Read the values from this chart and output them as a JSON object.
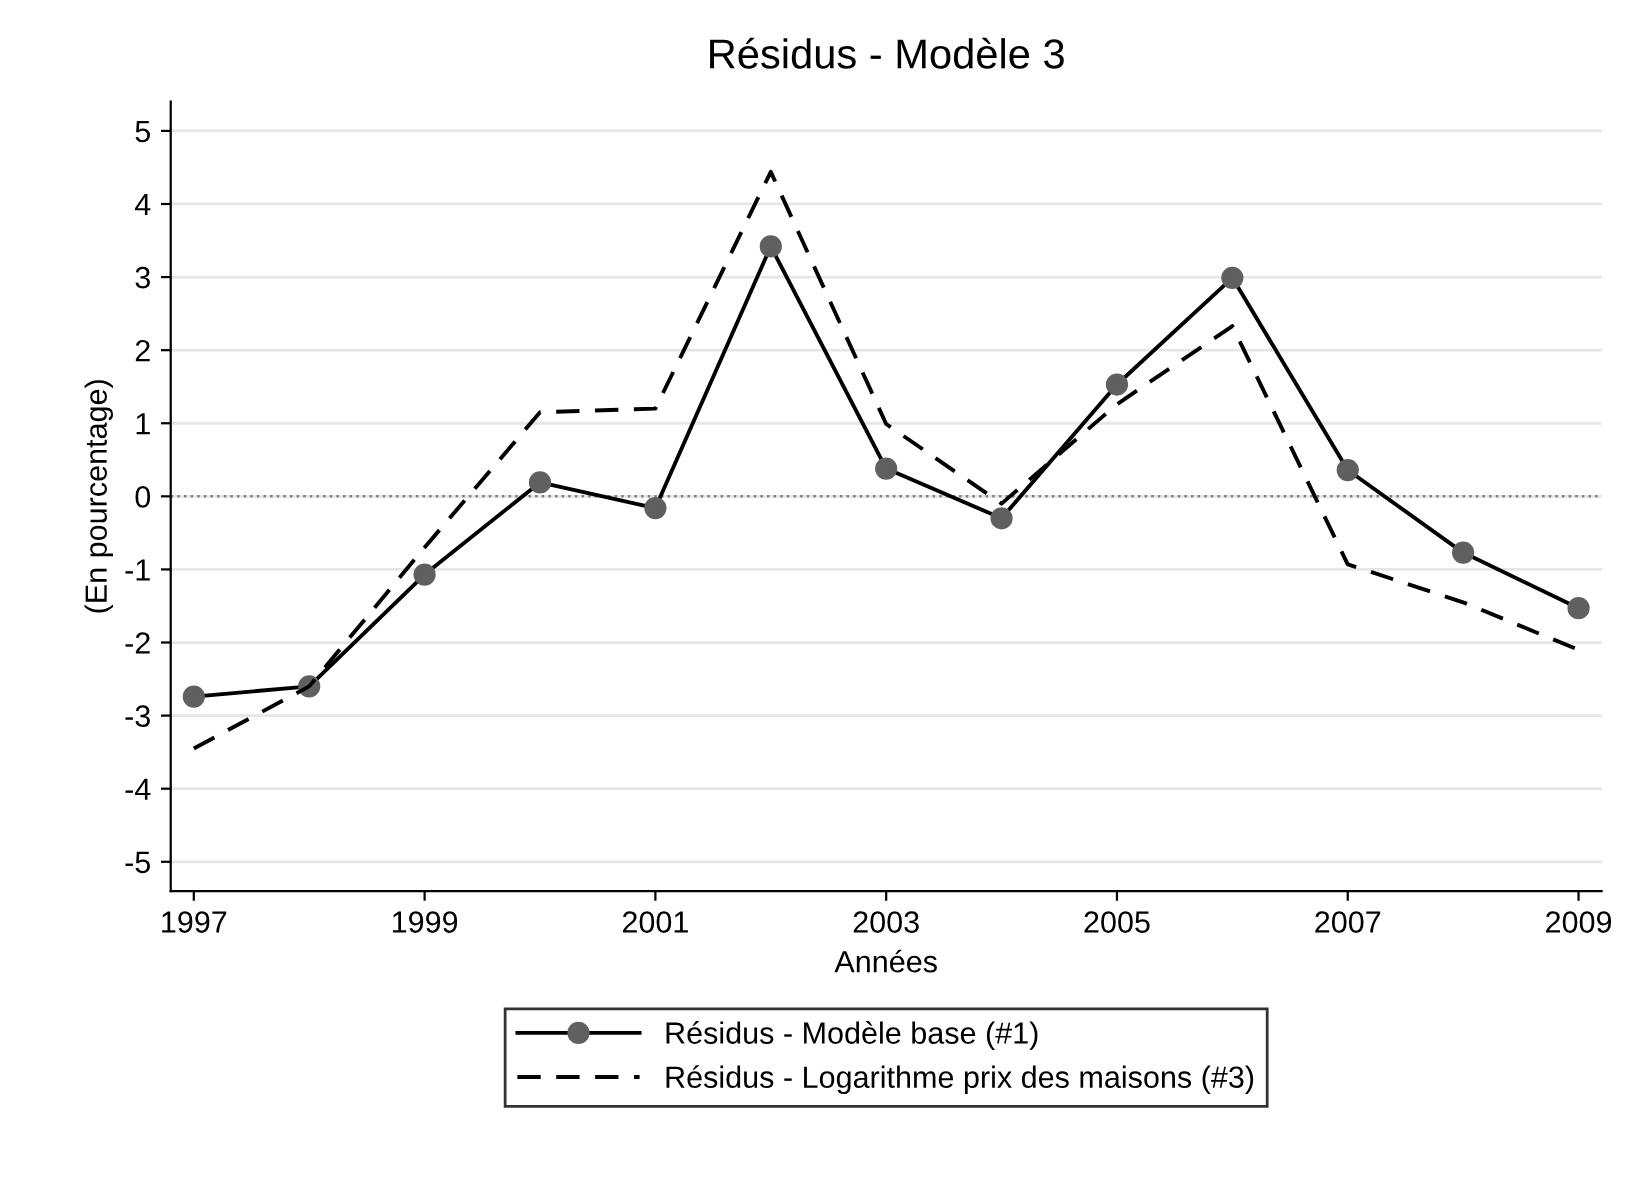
{
  "chart_data": {
    "type": "line",
    "title": "Résidus - Modèle 3",
    "xlabel": "Années",
    "ylabel": "(En pourcentage)",
    "x": [
      1997,
      1998,
      1999,
      2000,
      2001,
      2002,
      2003,
      2004,
      2005,
      2006,
      2007,
      2008,
      2009
    ],
    "series": [
      {
        "name": "Résidus - Modèle base (#1)",
        "color": "#000000",
        "marker": "circle",
        "line_style": "solid",
        "values": [
          -2.74,
          -2.6,
          -1.07,
          0.19,
          -0.16,
          3.42,
          0.38,
          -0.3,
          1.53,
          2.99,
          0.36,
          -0.77,
          -1.53
        ]
      },
      {
        "name": "Résidus - Logarithme prix des maisons (#3)",
        "color": "#000000",
        "marker": "none",
        "line_style": "dashed",
        "values": [
          -3.45,
          -2.6,
          -0.7,
          1.15,
          1.2,
          4.44,
          0.99,
          -0.1,
          1.26,
          2.33,
          -0.93,
          -1.45,
          -2.1
        ]
      }
    ],
    "xlim": [
      1996.8,
      2009.2
    ],
    "xticks": [
      1997,
      1999,
      2001,
      2003,
      2005,
      2007,
      2009
    ],
    "ylim": [
      -5.4,
      5.4
    ],
    "yticks": [
      -5,
      -4,
      -3,
      -2,
      -1,
      0,
      1,
      2,
      3,
      4,
      5
    ],
    "ref_lines": [
      {
        "axis": "y",
        "value": 0,
        "color": "#808080",
        "line_style": "dotted"
      }
    ],
    "grid": "y",
    "legend": "bottom"
  }
}
